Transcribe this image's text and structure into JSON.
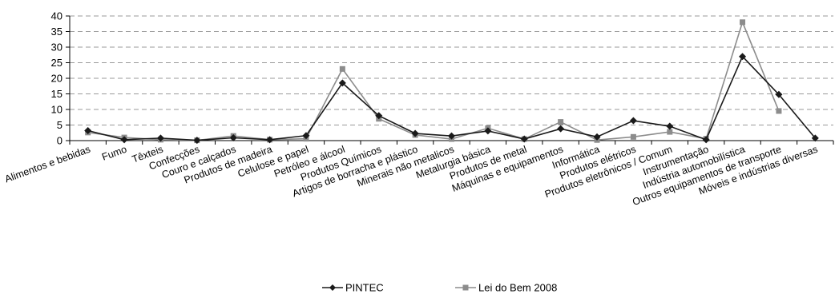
{
  "chart_data": {
    "type": "line",
    "categories": [
      "Alimentos e bebidas",
      "Fumo",
      "Têxteis",
      "Confecções",
      "Couro e calçados",
      "Produtos de madeira",
      "Celulose e papel",
      "Petróleo e álcool",
      "Produtos Químicos",
      "Artigos de borracha e plástico",
      "Minerais não metalicos",
      "Metalurgia básica",
      "Produtos de metal",
      "Máquinas e equipamentos",
      "Informática",
      "Produtos elétricos",
      "Produtos eletrônicos / Comum",
      "Instrumentação",
      "Indústria automobilística",
      "Outros equipamentos de transporte",
      "Móveis e indústrias diversas"
    ],
    "series": [
      {
        "name": "PINTEC",
        "color": "#1a1a1a",
        "marker": "diamond",
        "values": [
          3.2,
          0.3,
          0.8,
          0.1,
          0.9,
          0.3,
          1.6,
          18.5,
          8.0,
          2.3,
          1.5,
          3.1,
          0.5,
          3.8,
          1.2,
          6.4,
          4.6,
          0.3,
          27.0,
          14.8,
          0.8
        ]
      },
      {
        "name": "Lei do Bem 2008",
        "color": "#8c8c8c",
        "marker": "square",
        "values": [
          2.6,
          1.0,
          0.3,
          0.1,
          1.5,
          0.3,
          0.6,
          23.0,
          7.0,
          1.8,
          0.5,
          4.0,
          0.5,
          6.0,
          0.2,
          1.2,
          2.8,
          0.6,
          38.0,
          9.5,
          null
        ]
      }
    ],
    "title": "",
    "xlabel": "",
    "ylabel": "",
    "ylim": [
      0,
      40
    ],
    "yticks": [
      0,
      5,
      10,
      15,
      20,
      25,
      30,
      35,
      40
    ],
    "grid": "horizontal-dashed",
    "legend_position": "bottom"
  }
}
